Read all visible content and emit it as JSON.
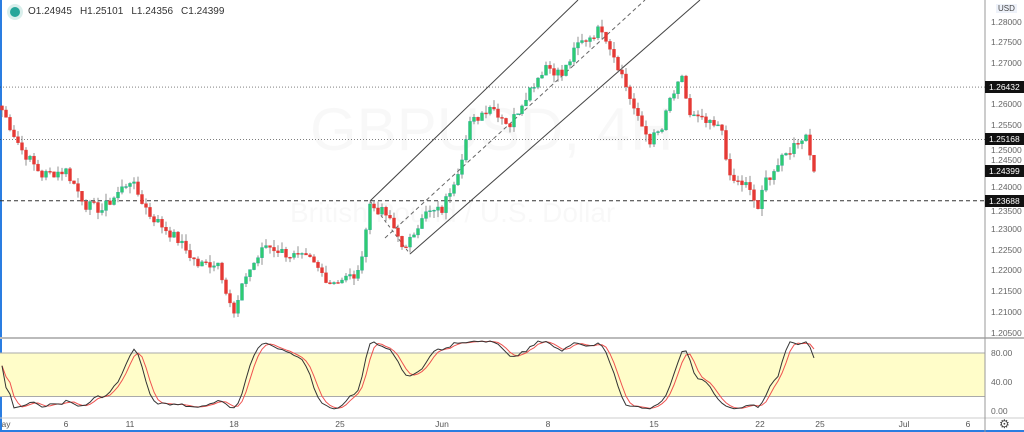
{
  "legend": {
    "open": "O1.24945",
    "high": "H1.25101",
    "low": "L1.24356",
    "close": "C1.24399"
  },
  "watermark": {
    "symbol": "GBPUSD, 4H",
    "description": "British Pound / U.S. Dollar"
  },
  "axis": {
    "currency": "USD",
    "price_ticks": [
      "1.28000",
      "1.27500",
      "1.27000",
      "1.26000",
      "1.25500",
      "1.25000",
      "1.24500",
      "1.24000",
      "1.23500",
      "1.23000",
      "1.22500",
      "1.22000",
      "1.21500",
      "1.21000",
      "1.20500"
    ],
    "osc_ticks": [
      "80.00",
      "40.00",
      "0.00"
    ],
    "time_labels": [
      {
        "t": "ay",
        "i": 1
      },
      {
        "t": "6",
        "i": 16
      },
      {
        "t": "11",
        "i": 32
      },
      {
        "t": "18",
        "i": 58
      },
      {
        "t": "25",
        "i": 84.5
      },
      {
        "t": "Jun",
        "i": 110
      },
      {
        "t": "8",
        "i": 136.5
      },
      {
        "t": "15",
        "i": 163
      },
      {
        "t": "22",
        "i": 189.5
      },
      {
        "t": "25",
        "i": 204.5
      },
      {
        "t": "Jul",
        "i": 225.5
      },
      {
        "t": "6",
        "i": 241.5
      }
    ]
  },
  "price_labels": [
    {
      "value": "1.26432",
      "price": 1.26432,
      "style": "dotted"
    },
    {
      "value": "1.25168",
      "price": 1.25168,
      "style": "dotted"
    },
    {
      "value": "1.24399",
      "price": 1.24399,
      "style": "none"
    },
    {
      "value": "1.23688",
      "price": 1.23688,
      "style": "dashed"
    }
  ],
  "colors": {
    "up": "#26a69a",
    "up_fill": "#2ecc71",
    "down": "#e53935",
    "k_line": "#333333",
    "d_line": "#ef5350",
    "band": "#fffdc9"
  },
  "chart_data": {
    "type": "candlestick",
    "ylim": [
      1.2035,
      1.2855
    ],
    "close_path": [
      [
        0,
        1.2588
      ],
      [
        5,
        1.2491
      ],
      [
        10,
        1.2431
      ],
      [
        16,
        1.2442
      ],
      [
        21,
        1.2359
      ],
      [
        25,
        1.2347
      ],
      [
        32,
        1.2419
      ],
      [
        37,
        1.2335
      ],
      [
        44,
        1.2274
      ],
      [
        49,
        1.2214
      ],
      [
        54,
        1.222
      ],
      [
        58,
        1.2093
      ],
      [
        61,
        1.219
      ],
      [
        66,
        1.2262
      ],
      [
        72,
        1.2238
      ],
      [
        77,
        1.2225
      ],
      [
        82,
        1.2173
      ],
      [
        89,
        1.219
      ],
      [
        92,
        1.2359
      ],
      [
        96,
        1.2335
      ],
      [
        101,
        1.225
      ],
      [
        105,
        1.2335
      ],
      [
        110,
        1.2347
      ],
      [
        114,
        1.2443
      ],
      [
        117,
        1.2552
      ],
      [
        122,
        1.26
      ],
      [
        127,
        1.2552
      ],
      [
        131,
        1.2624
      ],
      [
        136,
        1.2696
      ],
      [
        140,
        1.2672
      ],
      [
        144,
        1.2745
      ],
      [
        150,
        1.2786
      ],
      [
        153,
        1.272
      ],
      [
        155,
        1.2672
      ],
      [
        159,
        1.2564
      ],
      [
        162,
        1.2515
      ],
      [
        165,
        1.254
      ],
      [
        167,
        1.2612
      ],
      [
        170,
        1.266
      ],
      [
        172,
        1.2576
      ],
      [
        177,
        1.2551
      ],
      [
        180,
        1.254
      ],
      [
        182,
        1.2419
      ],
      [
        186,
        1.2407
      ],
      [
        189,
        1.2351
      ],
      [
        191,
        1.2419
      ],
      [
        195,
        1.2467
      ],
      [
        199,
        1.2515
      ],
      [
        201,
        1.2527
      ],
      [
        203,
        1.24399
      ]
    ],
    "oscillator": {
      "type": "stochastic",
      "levels": [
        20,
        80
      ],
      "ylim": [
        0,
        100
      ]
    }
  }
}
